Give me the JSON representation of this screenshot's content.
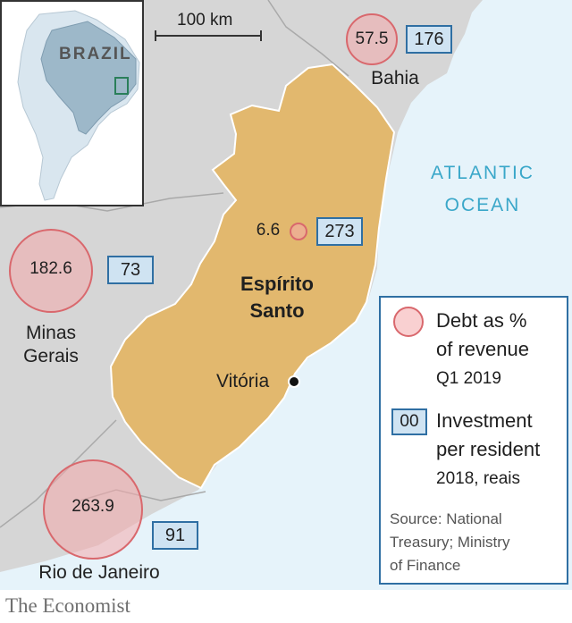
{
  "colors": {
    "land": "#d6d6d6",
    "ocean": "#e6f3fa",
    "focus_state": "#e2b86e",
    "border_lines": "#a9a9a9",
    "circle_fill": "#f4aaac",
    "circle_stroke": "#d9686d",
    "box_fill": "#cfe3f2",
    "box_stroke": "#2f6fa3",
    "brand_red": "#e3120b",
    "ocean_label": "#3aa7c9"
  },
  "inset": {
    "country_label": "BRAZIL"
  },
  "scale_bar": {
    "label": "100 km"
  },
  "ocean_label": {
    "line1": "ATLANTIC",
    "line2": "OCEAN"
  },
  "states": [
    {
      "id": "bahia",
      "name": "Bahia",
      "debt_pct_revenue": "57.5",
      "investment_per_resident": "176"
    },
    {
      "id": "espirito-santo",
      "name_line1": "Espírito",
      "name_line2": "Santo",
      "debt_pct_revenue": "6.6",
      "investment_per_resident": "273"
    },
    {
      "id": "minas-gerais",
      "name_line1": "Minas",
      "name_line2": "Gerais",
      "debt_pct_revenue": "182.6",
      "investment_per_resident": "73"
    },
    {
      "id": "rio-de-janeiro",
      "name": "Rio de Janeiro",
      "debt_pct_revenue": "263.9",
      "investment_per_resident": "91"
    }
  ],
  "city": {
    "name": "Vitória"
  },
  "legend": {
    "circle_title_line1": "Debt as %",
    "circle_title_line2": "of revenue",
    "circle_subtitle": "Q1 2019",
    "box_sample": "00",
    "box_title_line1": "Investment",
    "box_title_line2": "per resident",
    "box_subtitle": "2018, reais",
    "source_line1": "Source: National",
    "source_line2": "Treasury; Ministry",
    "source_line3": "of Finance"
  },
  "footer": {
    "publisher": "The Economist"
  }
}
